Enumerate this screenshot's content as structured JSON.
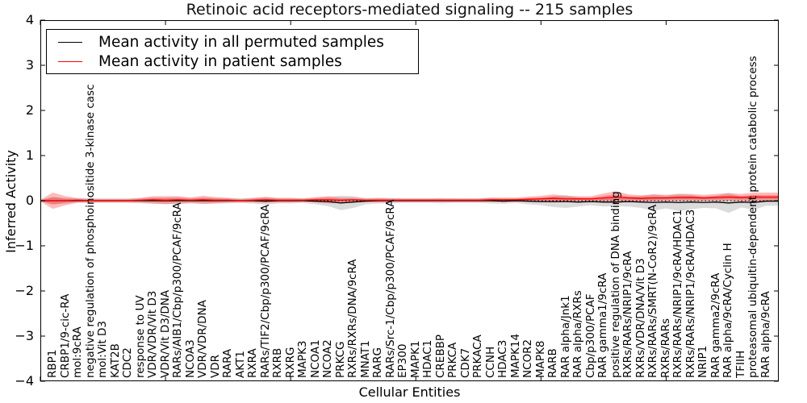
{
  "title": "Retinoic acid receptors-mediated signaling -- 215 samples",
  "xlabel": "Cellular Entities",
  "ylabel": "Inferred Activity",
  "legend": {
    "items": [
      {
        "label": "Mean activity in all permuted samples",
        "color": "#000000"
      },
      {
        "label": "Mean activity in patient samples",
        "color": "#ff0000"
      }
    ],
    "position": "upper left"
  },
  "chart_data": {
    "type": "line",
    "title": "Retinoic acid receptors-mediated signaling -- 215 samples",
    "xlabel": "Cellular Entities",
    "ylabel": "Inferred Activity",
    "ylim": [
      -4,
      4
    ],
    "yticks": [
      4,
      3,
      2,
      1,
      0,
      -1,
      -2,
      -3,
      -4
    ],
    "ytick_labels": [
      "4",
      "3",
      "2",
      "1",
      "0",
      "−1",
      "−2",
      "−3",
      "−4"
    ],
    "xtick_data_positions": [
      0,
      10,
      20,
      30,
      40,
      50
    ],
    "grid": false,
    "zero_line": 0,
    "legend_position": "upper left",
    "categories": [
      "RBP1",
      "CRBP1/9-cic-RA",
      "mol:9cRA",
      "negative regulation of phosphoinositide 3-kinase casc",
      "mol:Vit D3",
      "KAT2B",
      "CDC2",
      "response to UV",
      "VDR/VDR/Vit D3",
      "VDR/Vit D3/DNA",
      "RARs/AIB1/Cbp/p300/PCAF/9cRA",
      "NCOA3",
      "VDR/VDR/DNA",
      "VDR",
      "RARA",
      "AKT1",
      "RXRA",
      "RARs/TIF2/Cbp/p300/PCAF/9cRA",
      "RXRB",
      "RXRG",
      "MAPK3",
      "NCOA1",
      "NCOA2",
      "PRKCG",
      "RXRs/RXRs/DNA/9cRA",
      "MNAT1",
      "RARG",
      "RARs/Src-1/Cbp/p300/PCAF/9cRA",
      "EP300",
      "MAPK1",
      "HDAC1",
      "CREBBP",
      "PRKCA",
      "CDK7",
      "PRKACA",
      "CCNH",
      "HDAC3",
      "MAPK14",
      "NCOR2",
      "MAPK8",
      "RARB",
      "RAR alpha/Jnk1",
      "RAR alpha/RXRs",
      "Cbp/p300/PCAF",
      "RAR gamma1/9cRA",
      "positive regulation of DNA binding",
      "RXRs/RARs/NRIP1/9cRA",
      "RXRs/VDR/DNA/Vit D3",
      "RXRs/RARs/SMRT(N-CoR2)/9cRA",
      "RXRs/RARs",
      "RXRs/RARs/NRIP1/9cRA/HDAC1",
      "RXRs/RARs/NRIP1/9cRA/HDAC3",
      "NRIP1",
      "RAR gamma2/9cRA",
      "RAR alpha/9cRA/Cyclin H",
      "TFIIH",
      "proteasomal ubiquitin-dependent protein catabolic process",
      "RAR alpha/9cRA"
    ],
    "series": [
      {
        "name": "Mean activity in all permuted samples",
        "color": "#000000",
        "band_color": "rgba(0,0,0,0.14)",
        "values": [
          0,
          0,
          0,
          0,
          0,
          0,
          0,
          0,
          0,
          0,
          0,
          0,
          0,
          0,
          0,
          0,
          0,
          -0.01,
          0,
          0,
          0,
          -0.01,
          -0.02,
          -0.05,
          -0.03,
          -0.01,
          0,
          0,
          0,
          0,
          0,
          0,
          0,
          0,
          0,
          0,
          -0.01,
          0,
          -0.01,
          -0.02,
          -0.02,
          -0.02,
          -0.03,
          -0.02,
          -0.03,
          -0.03,
          -0.02,
          -0.03,
          -0.04,
          -0.03,
          -0.04,
          -0.03,
          -0.04,
          -0.03,
          -0.05,
          -0.03,
          -0.04,
          -0.01
        ],
        "std": [
          0.08,
          0.06,
          0.05,
          0.05,
          0.05,
          0.05,
          0.05,
          0.06,
          0.07,
          0.07,
          0.08,
          0.06,
          0.07,
          0.06,
          0.06,
          0.05,
          0.06,
          0.08,
          0.06,
          0.06,
          0.05,
          0.07,
          0.1,
          0.16,
          0.13,
          0.07,
          0.06,
          0.06,
          0.05,
          0.05,
          0.05,
          0.06,
          0.05,
          0.05,
          0.05,
          0.06,
          0.06,
          0.05,
          0.07,
          0.08,
          0.12,
          0.14,
          0.1,
          0.08,
          0.1,
          0.09,
          0.11,
          0.13,
          0.18,
          0.14,
          0.19,
          0.16,
          0.12,
          0.14,
          0.22,
          0.12,
          0.16,
          0.1
        ]
      },
      {
        "name": "Mean activity in patient samples",
        "color": "#ff0000",
        "band_color": "rgba(255,30,30,0.30)",
        "values": [
          0,
          0,
          0.01,
          0,
          0,
          0,
          0,
          0.01,
          0.02,
          0.01,
          0.02,
          0.01,
          0.02,
          0.01,
          0.01,
          0,
          0.01,
          0.02,
          0.01,
          0.01,
          0.01,
          0.02,
          0.02,
          0.01,
          0.02,
          0.01,
          0.01,
          0.01,
          0.01,
          0.01,
          0.01,
          0.01,
          0.01,
          0.01,
          0.01,
          0.02,
          0.02,
          0.02,
          0.03,
          0.04,
          0.05,
          0.04,
          0.04,
          0.04,
          0.06,
          0.08,
          0.06,
          0.05,
          0.06,
          0.06,
          0.07,
          0.07,
          0.06,
          0.07,
          0.08,
          0.07,
          0.08,
          0.08
        ],
        "std": [
          0.18,
          0.1,
          0.05,
          0.04,
          0.04,
          0.04,
          0.04,
          0.05,
          0.08,
          0.09,
          0.08,
          0.06,
          0.09,
          0.07,
          0.05,
          0.04,
          0.05,
          0.07,
          0.05,
          0.05,
          0.04,
          0.06,
          0.08,
          0.06,
          0.05,
          0.04,
          0.05,
          0.04,
          0.04,
          0.04,
          0.04,
          0.04,
          0.04,
          0.04,
          0.04,
          0.05,
          0.05,
          0.05,
          0.06,
          0.07,
          0.09,
          0.07,
          0.06,
          0.06,
          0.1,
          0.13,
          0.08,
          0.07,
          0.08,
          0.07,
          0.08,
          0.08,
          0.07,
          0.08,
          0.09,
          0.08,
          0.1,
          0.1
        ]
      }
    ]
  }
}
